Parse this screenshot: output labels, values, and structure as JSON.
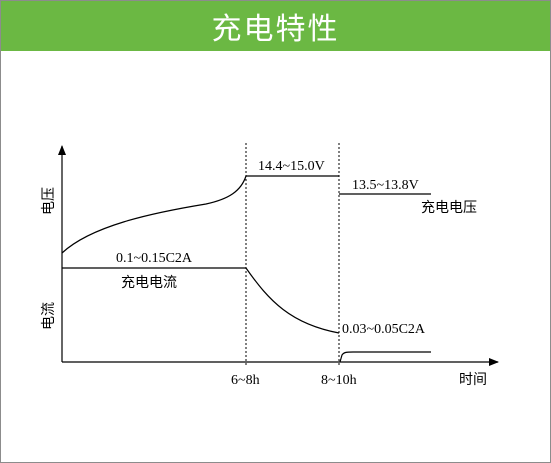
{
  "header": {
    "title": "充电特性"
  },
  "axes": {
    "y_voltage_label": "电压",
    "y_current_label": "电流",
    "x_label": "时间",
    "x_ticks": [
      "6~8h",
      "8~10h"
    ]
  },
  "annotations": {
    "boost_voltage": "14.4~15.0V",
    "float_voltage": "13.5~13.8V",
    "charge_voltage": "充电电压",
    "initial_current": "0.1~0.15C2A",
    "charge_current": "充电电流",
    "float_current": "0.03~0.05C2A"
  }
}
